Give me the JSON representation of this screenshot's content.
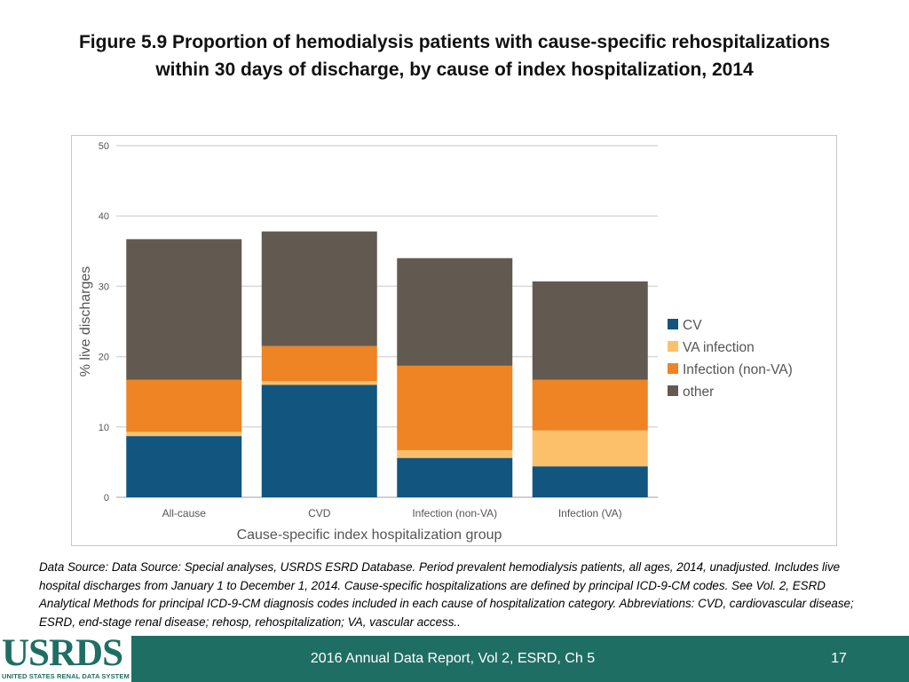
{
  "title_line1": "Figure 5.9 Proportion of hemodialysis patients with cause-specific rehospitalizations",
  "title_line2": "within 30 days of discharge, by cause of index hospitalization, 2014",
  "chart_data": {
    "type": "bar",
    "stacked": true,
    "title": "Figure 5.9 Proportion of hemodialysis patients with cause-specific rehospitalizations within 30 days of discharge, by cause of index hospitalization, 2014",
    "xlabel": "Cause-specific index hospitalization group",
    "ylabel": "% live discharges",
    "ylim": [
      0,
      50
    ],
    "yticks": [
      0,
      10,
      20,
      30,
      40,
      50
    ],
    "grid": true,
    "legend_position": "right",
    "categories": [
      "All-cause",
      "CVD",
      "Infection (non-VA)",
      "Infection (VA)"
    ],
    "series": [
      {
        "name": "CV",
        "color": "#12557f",
        "values": [
          8.7,
          16.0,
          5.6,
          4.4
        ]
      },
      {
        "name": "VA infection",
        "color": "#fcc06b",
        "values": [
          0.6,
          0.5,
          1.1,
          5.1
        ]
      },
      {
        "name": "Infection (non-VA)",
        "color": "#ee8423",
        "values": [
          7.4,
          5.0,
          12.0,
          7.2
        ]
      },
      {
        "name": "other",
        "color": "#625a51",
        "values": [
          20.0,
          16.3,
          15.3,
          14.0
        ]
      }
    ]
  },
  "source_text": "Data Source: Data Source: Special analyses, USRDS ESRD Database. Period prevalent hemodialysis patients, all ages, 2014, unadjusted. Includes live hospital discharges from January 1 to December 1, 2014. Cause-specific hospitalizations are defined by principal ICD-9-CM codes. See Vol. 2, ESRD Analytical Methods for principal ICD-9-CM diagnosis codes included in each cause of hospitalization category. Abbreviations: CVD, cardiovascular disease; ESRD, end-stage renal disease; rehosp, rehospitalization; VA, vascular access..",
  "footer": {
    "logo_text": "USRDS",
    "logo_subtext": "UNITED STATES RENAL DATA SYSTEM",
    "report_label": "2016 Annual Data Report, Vol 2, ESRD, Ch 5",
    "page_number": "17"
  }
}
